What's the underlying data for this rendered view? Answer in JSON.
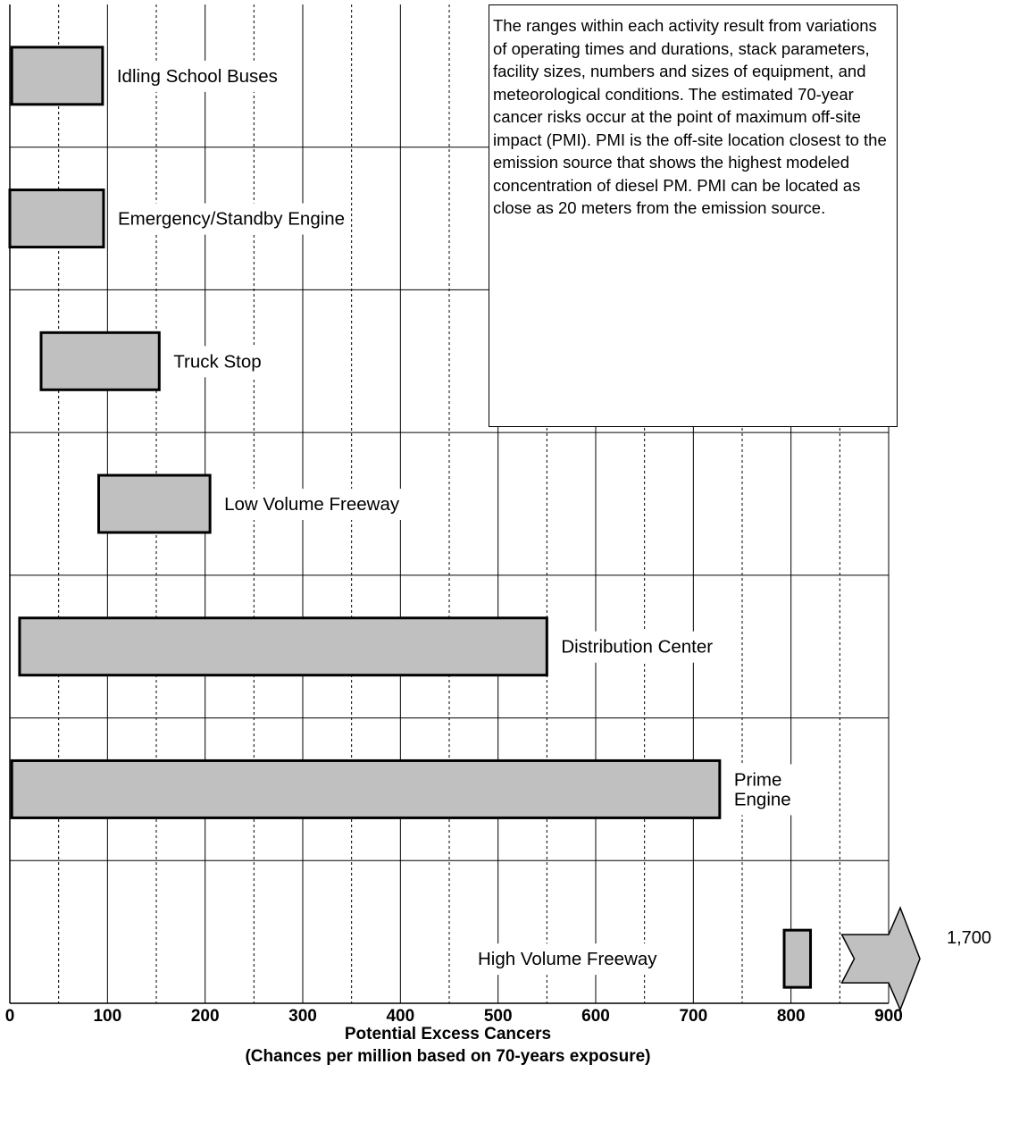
{
  "chart_data": {
    "type": "bar",
    "orientation": "horizontal",
    "subtype": "range (floating) bars",
    "categories": [
      "Idling School Buses",
      "Emergency/Standby Engine",
      "Truck Stop",
      "Low Volume Freeway",
      "Distribution Center",
      "Prime\nEngine",
      "High Volume Freeway"
    ],
    "ranges": [
      [
        2,
        95
      ],
      [
        0,
        96
      ],
      [
        32,
        153
      ],
      [
        91,
        205
      ],
      [
        10,
        550
      ],
      [
        2,
        727
      ],
      [
        793,
        820
      ]
    ],
    "overflow_arrow": {
      "category": "High Volume Freeway",
      "from": 852,
      "label": "1,700"
    },
    "x_ticks": [
      "0",
      "100",
      "200",
      "300",
      "400",
      "500",
      "600",
      "700",
      "800",
      "900"
    ],
    "x_minor_gridlines": [
      50,
      150,
      250,
      350,
      450,
      550,
      650,
      750,
      850
    ],
    "xlim": [
      0,
      900
    ],
    "xlabel": "Potential Excess Cancers",
    "xlabel_sub": "(Chances per million based on 70-years exposure)",
    "note": "The ranges within each activity result from variations of operating times and durations, stack parameters, facility sizes, numbers and sizes of equipment, and meteorological conditions.  The estimated 70-year cancer risks occur at the point of maximum off-site impact (PMI).  PMI is the off-site location closest to the emission source that shows the highest modeled concentration of diesel PM. PMI can be located as close as 20 meters from the emission source.",
    "grid": "vertical dashed minor, vertical solid major, horizontal row separators",
    "colors": {
      "bar_fill": "#c0c0c0",
      "bar_stroke": "#000000",
      "grid": "#000000"
    }
  }
}
